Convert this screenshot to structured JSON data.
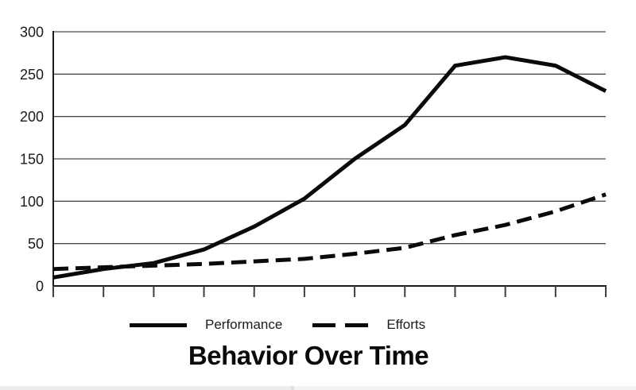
{
  "chart_data": {
    "type": "line",
    "title": "Behavior Over Time",
    "x_axis": {
      "tick_count": 12,
      "labels_visible": false
    },
    "y_ticks": [
      0,
      50,
      100,
      150,
      200,
      250,
      300
    ],
    "ylim": [
      0,
      300
    ],
    "grid": "horizontal",
    "legend_position": "bottom",
    "series": [
      {
        "name": "Performance",
        "line_style": "solid",
        "color": "#0a0a0a",
        "values": [
          10,
          20,
          27,
          43,
          70,
          103,
          150,
          190,
          260,
          270,
          260,
          230
        ]
      },
      {
        "name": "Efforts",
        "line_style": "dashed",
        "color": "#0a0a0a",
        "values": [
          20,
          22,
          24,
          26,
          29,
          32,
          38,
          45,
          60,
          72,
          88,
          108
        ]
      }
    ]
  },
  "colors": {
    "background": "#ffffff",
    "axis": "#1a1a1a",
    "grid": "#4d4d4d",
    "tick": "#3f3f3f",
    "label": "#1a1a1a",
    "scrollbar_thumb": "#efedeb",
    "scrollbar_divider": "#e2e1df",
    "scrollbar_track": "#f4f3f2"
  }
}
